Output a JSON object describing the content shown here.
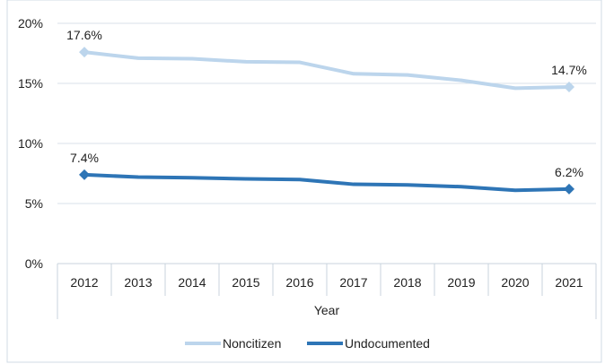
{
  "chart_data": {
    "type": "line",
    "title": "",
    "xlabel": "Year",
    "ylabel": "",
    "categories": [
      "2012",
      "2013",
      "2014",
      "2015",
      "2016",
      "2017",
      "2018",
      "2019",
      "2020",
      "2021"
    ],
    "ylim": [
      0,
      20
    ],
    "yticks": [
      "0%",
      "5%",
      "10%",
      "15%",
      "20%"
    ],
    "grid": "horizontal",
    "legend_position": "bottom",
    "series": [
      {
        "name": "Noncitizen",
        "color": "#bcd5ec",
        "values": [
          17.6,
          17.1,
          17.05,
          16.8,
          16.75,
          15.8,
          15.7,
          15.25,
          14.6,
          14.7
        ],
        "labels": {
          "first": "17.6%",
          "last": "14.7%"
        }
      },
      {
        "name": "Undocumented",
        "color": "#2e75b6",
        "values": [
          7.4,
          7.2,
          7.15,
          7.05,
          7.0,
          6.6,
          6.55,
          6.4,
          6.1,
          6.2
        ],
        "labels": {
          "first": "7.4%",
          "last": "6.2%"
        }
      }
    ]
  }
}
